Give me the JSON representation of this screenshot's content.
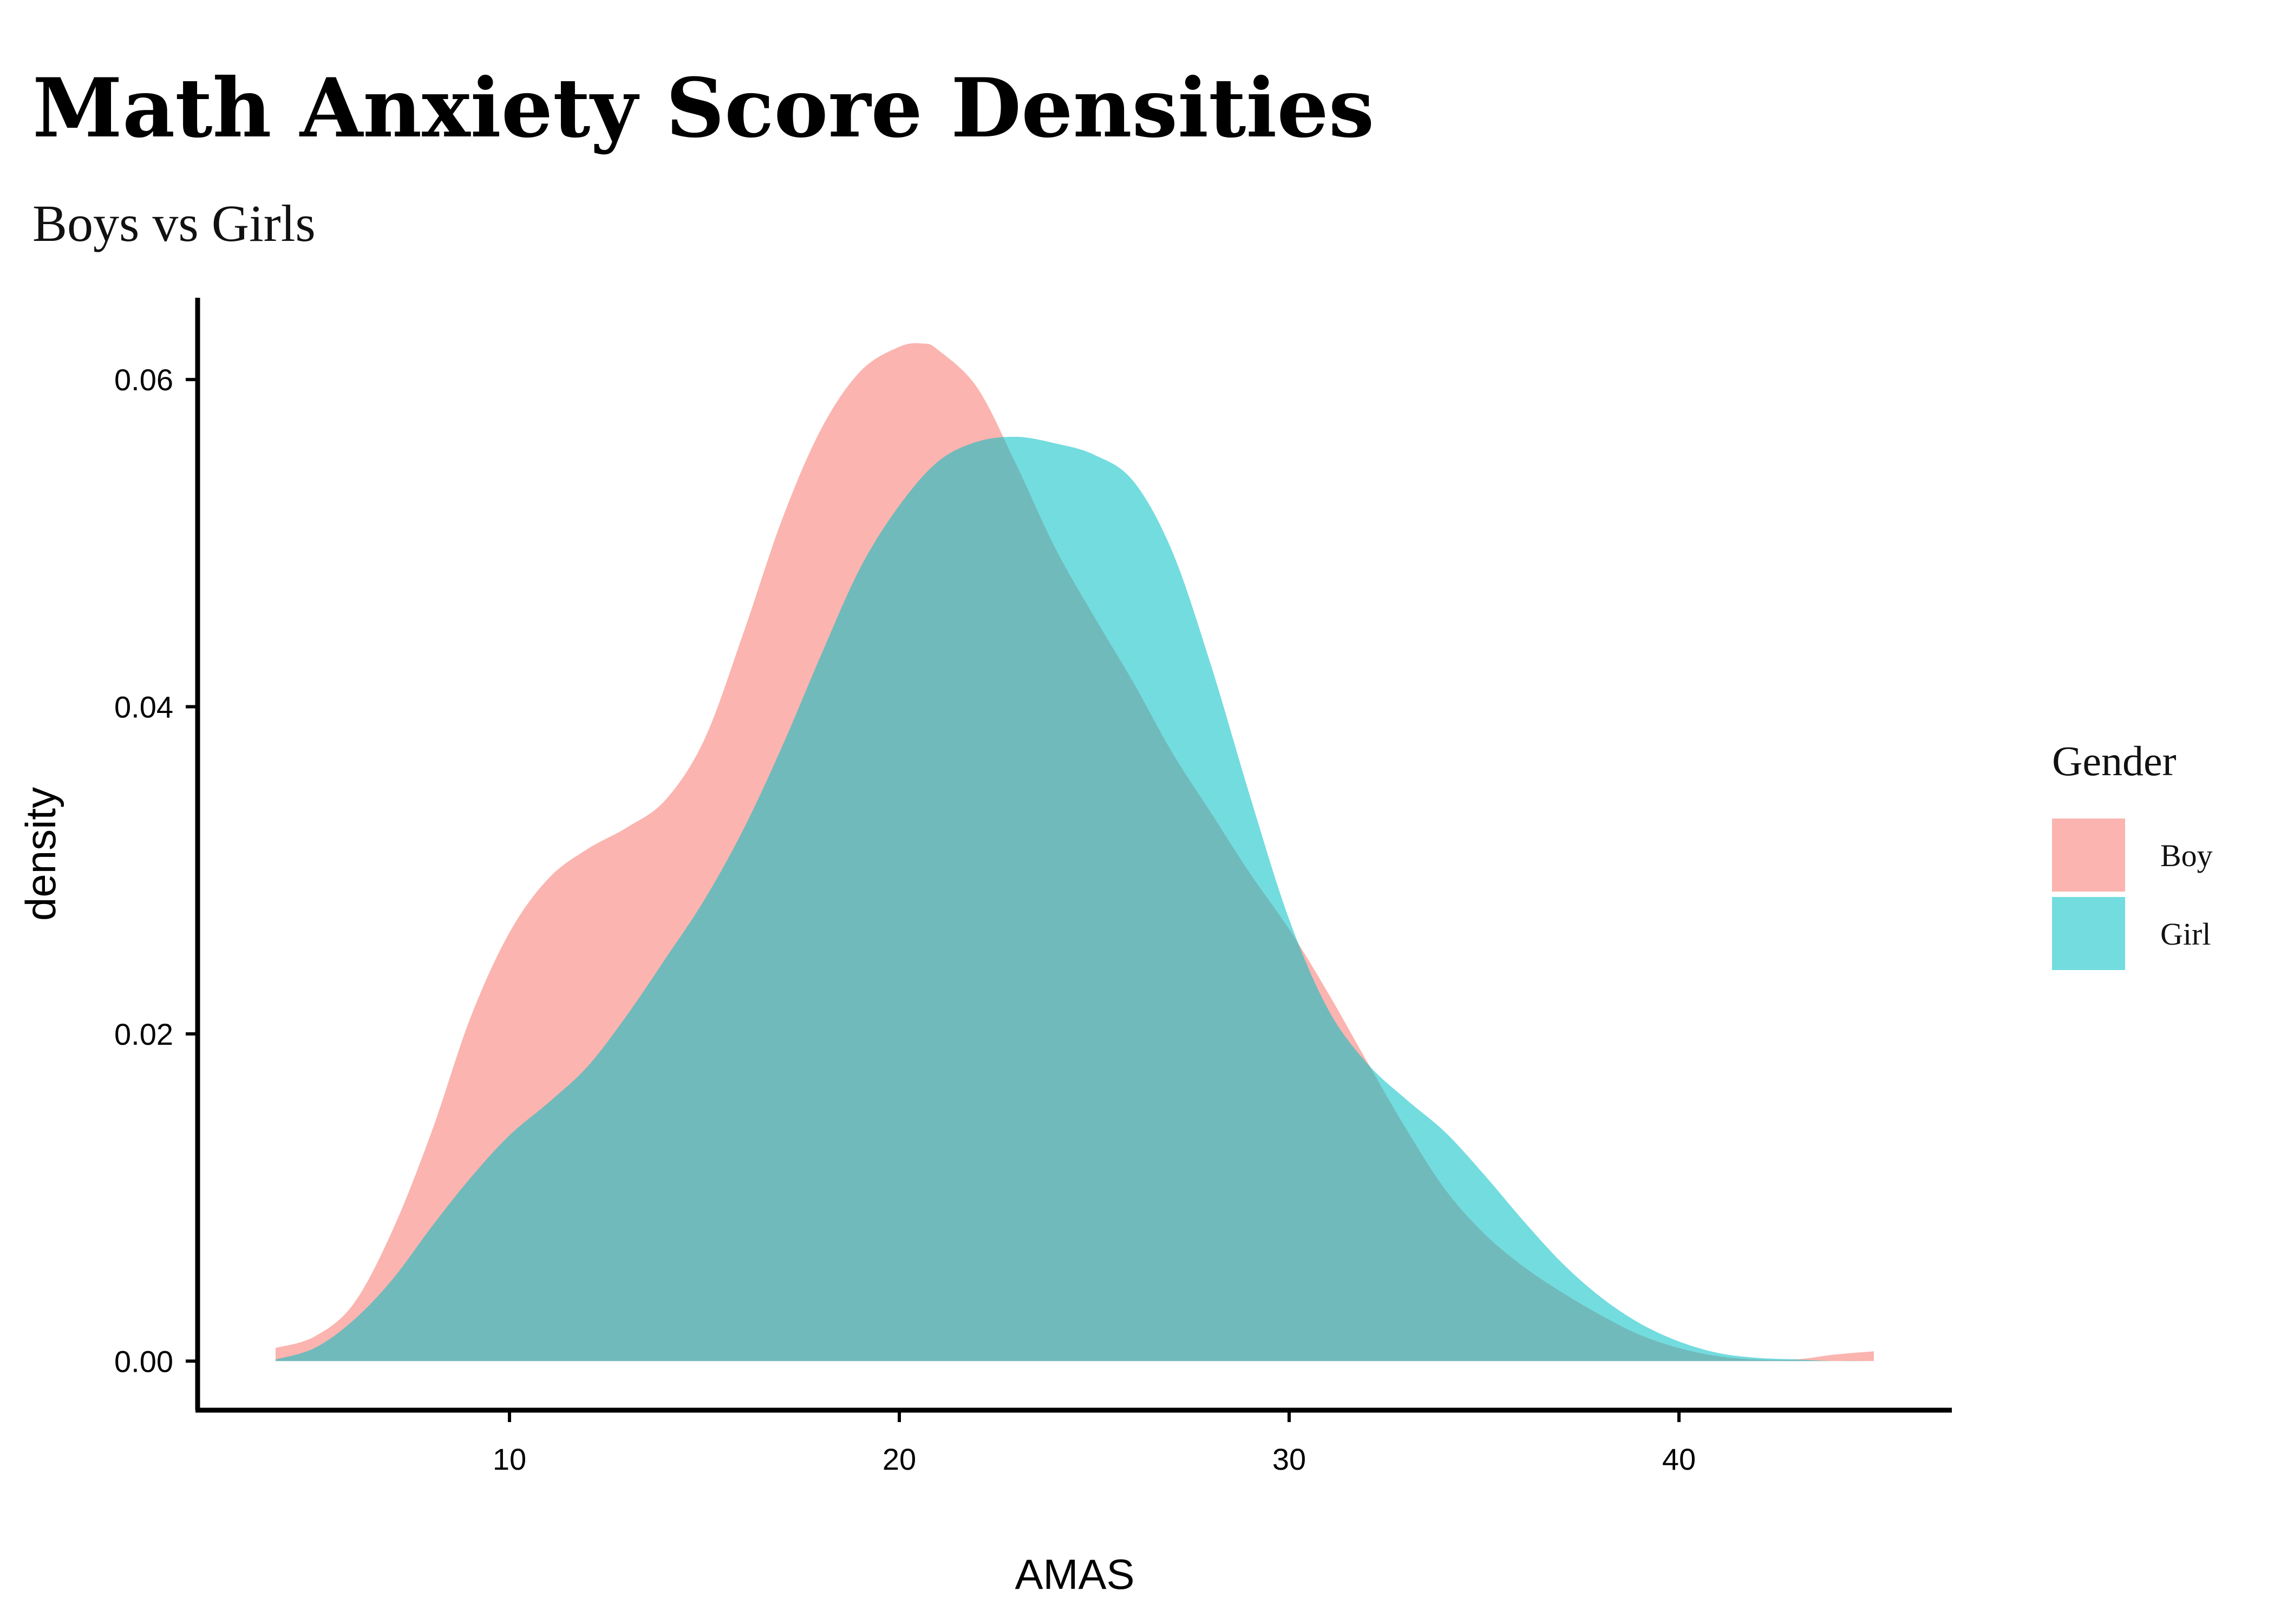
{
  "chart_data": {
    "type": "area",
    "title": "Math Anxiety Score Densities",
    "subtitle": "Boys vs Girls",
    "xlabel": "AMAS",
    "ylabel": "density",
    "xlim": [
      2,
      47
    ],
    "ylim": [
      -0.003,
      0.065
    ],
    "xticks": [
      10,
      20,
      30,
      40
    ],
    "yticks": [
      0.0,
      0.02,
      0.04,
      0.06
    ],
    "xtick_labels": [
      "10",
      "20",
      "30",
      "40"
    ],
    "ytick_labels": [
      "0.00",
      "0.02",
      "0.04",
      "0.06"
    ],
    "grid": false,
    "legend": {
      "title": "Gender",
      "position": "right"
    },
    "series": [
      {
        "name": "Boy",
        "color": "#F8766D",
        "x": [
          4,
          5,
          6,
          7,
          8,
          9,
          10,
          11,
          12,
          13,
          14,
          15,
          16,
          17,
          18,
          19,
          20,
          20.6,
          21,
          22,
          23,
          24,
          25,
          26,
          27,
          28,
          29,
          30,
          31,
          32,
          33,
          34,
          35,
          36,
          37,
          38,
          39,
          40,
          41,
          42,
          43,
          44,
          45
        ],
        "y": [
          0.0008,
          0.0015,
          0.0035,
          0.008,
          0.014,
          0.021,
          0.0262,
          0.0295,
          0.0313,
          0.0326,
          0.0343,
          0.038,
          0.0445,
          0.0515,
          0.057,
          0.0605,
          0.062,
          0.0622,
          0.0618,
          0.0595,
          0.0548,
          0.0497,
          0.0455,
          0.0415,
          0.0372,
          0.0335,
          0.0298,
          0.0264,
          0.0225,
          0.0183,
          0.0142,
          0.0105,
          0.0078,
          0.0058,
          0.0042,
          0.0028,
          0.0016,
          0.0008,
          0.0003,
          0.0001,
          0.0001,
          0.0004,
          0.0006
        ]
      },
      {
        "name": "Girl",
        "color": "#00BFC4",
        "x": [
          4,
          5,
          6,
          7,
          8,
          9,
          10,
          11,
          12,
          13,
          14,
          15,
          16,
          17,
          18,
          19,
          20,
          21,
          22,
          23,
          24,
          25,
          26,
          27,
          28,
          29,
          30,
          31,
          32,
          33,
          34,
          35,
          36,
          37,
          38,
          39,
          40,
          41,
          42,
          43,
          44,
          45
        ],
        "y": [
          0.0001,
          0.0008,
          0.0025,
          0.005,
          0.0082,
          0.0112,
          0.0138,
          0.0158,
          0.018,
          0.0211,
          0.0246,
          0.0282,
          0.0325,
          0.0376,
          0.0432,
          0.0485,
          0.0523,
          0.055,
          0.0562,
          0.0565,
          0.0561,
          0.0554,
          0.0538,
          0.0495,
          0.0425,
          0.0345,
          0.027,
          0.0215,
          0.0182,
          0.016,
          0.014,
          0.0114,
          0.0086,
          0.006,
          0.0039,
          0.0023,
          0.0012,
          0.0005,
          0.0002,
          0.0001,
          0.0,
          0.0
        ]
      }
    ]
  }
}
